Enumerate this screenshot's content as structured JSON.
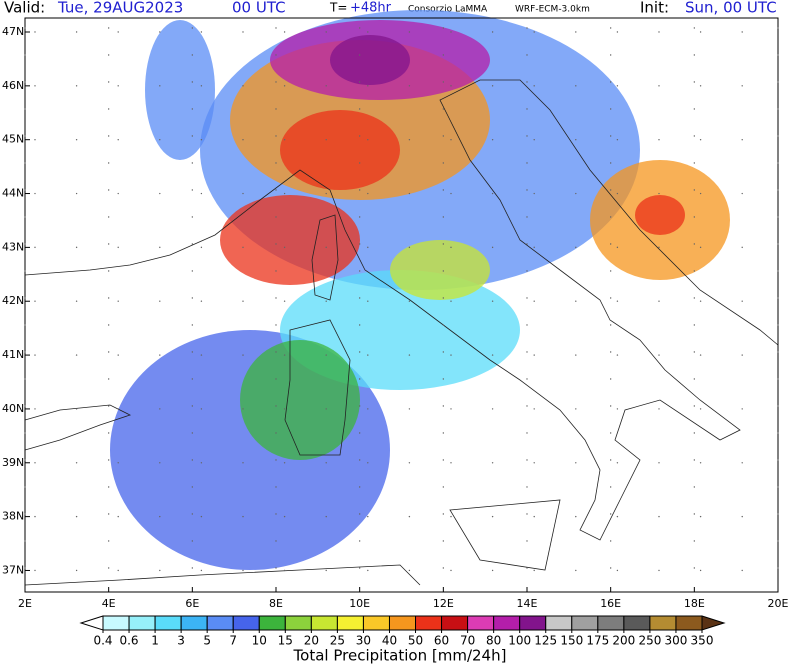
{
  "header": {
    "valid_label": "Valid:",
    "valid_time": "Tue, 29AUG2023",
    "valid_hour": "00 UTC",
    "forecast_label": "T=",
    "forecast_step": "+48hr",
    "producer": "Consorzio LaMMA",
    "model": "WRF-ECM-3.0km",
    "init_label": "Init:",
    "init_time": "Sun, 00 UTC"
  },
  "map": {
    "lon_range": [
      2,
      20
    ],
    "lat_range": [
      36.6,
      47.26
    ],
    "lon_ticks": [
      {
        "value": 2,
        "label": "2E"
      },
      {
        "value": 4,
        "label": "4E"
      },
      {
        "value": 6,
        "label": "6E"
      },
      {
        "value": 8,
        "label": "8E"
      },
      {
        "value": 10,
        "label": "10E"
      },
      {
        "value": 12,
        "label": "12E"
      },
      {
        "value": 14,
        "label": "14E"
      },
      {
        "value": 16,
        "label": "16E"
      },
      {
        "value": 18,
        "label": "18E"
      },
      {
        "value": 20,
        "label": "20E"
      }
    ],
    "lat_ticks": [
      {
        "value": 47,
        "label": "47N"
      },
      {
        "value": 46,
        "label": "46N"
      },
      {
        "value": 45,
        "label": "45N"
      },
      {
        "value": 44,
        "label": "44N"
      },
      {
        "value": 43,
        "label": "43N"
      },
      {
        "value": 42,
        "label": "42N"
      },
      {
        "value": 41,
        "label": "41N"
      },
      {
        "value": 40,
        "label": "40N"
      },
      {
        "value": 39,
        "label": "39N"
      },
      {
        "value": 38,
        "label": "38N"
      },
      {
        "value": 37,
        "label": "37N"
      }
    ]
  },
  "colorbar": {
    "title": "Total Precipitation [mm/24h]",
    "levels": [
      0.4,
      0.6,
      1,
      3,
      5,
      7,
      10,
      15,
      20,
      25,
      30,
      40,
      50,
      60,
      70,
      80,
      100,
      125,
      150,
      175,
      200,
      250,
      300,
      350
    ],
    "colors": [
      "#c8faff",
      "#96f0fa",
      "#5adcfa",
      "#3cb4f5",
      "#5a8cf5",
      "#4664eb",
      "#3cb43c",
      "#8cd23c",
      "#c8e632",
      "#f5f032",
      "#fac828",
      "#f5961e",
      "#eb3219",
      "#c80f14",
      "#dc3cb4",
      "#b41eaa",
      "#82148c",
      "#c8c8c8",
      "#a0a0a0",
      "#7d7d7d",
      "#5a5a5a",
      "#b48c32",
      "#8c5a1e"
    ],
    "under_color": "#ffffff",
    "over_color": "#5a3214"
  }
}
